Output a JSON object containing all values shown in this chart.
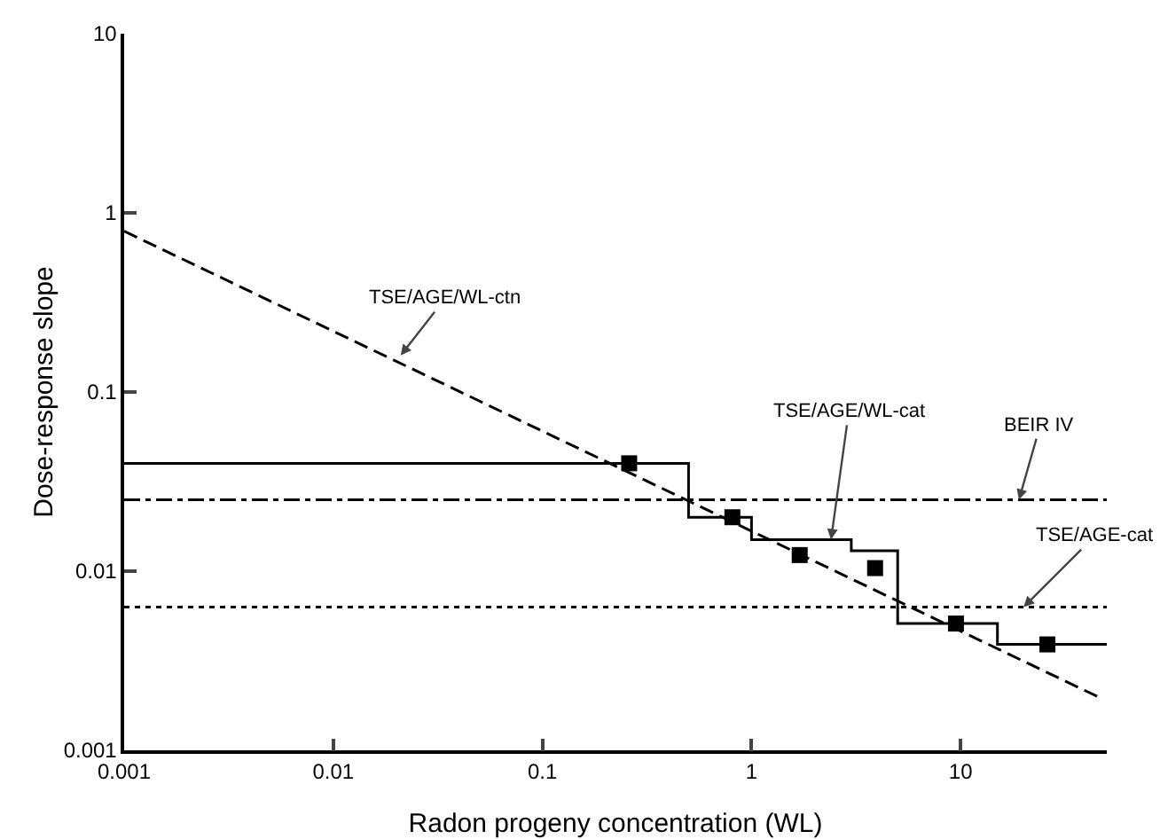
{
  "chart_data": {
    "type": "line",
    "xlabel": "Radon progeny concentration (WL)",
    "ylabel": "Dose-response slope",
    "log": "xy",
    "grid": false,
    "xlim": [
      0.001,
      50
    ],
    "xticks": [
      0.001,
      0.01,
      0.1,
      1,
      10
    ],
    "ylim": [
      0.001,
      10
    ],
    "yticks": [
      0.001,
      0.01,
      0.1,
      1,
      10
    ],
    "series": [
      {
        "color": "#000000",
        "line_style": "dashed",
        "marker": "none",
        "x": [
          0.001,
          45
        ],
        "values": [
          0.79,
          0.002
        ]
      },
      {
        "type": "step",
        "color": "#000000",
        "line_style": "solid",
        "marker": "none",
        "x": [
          0.001,
          0.5,
          1,
          3,
          5,
          15,
          50
        ],
        "values": [
          0.04,
          0.02,
          0.015,
          0.013,
          0.0051,
          0.0039,
          0.0039
        ]
      },
      {
        "type": "scatter",
        "color": "#000000",
        "marker": "square",
        "x": [
          0.26,
          0.81,
          1.7,
          3.9,
          9.5,
          26
        ],
        "values": [
          0.04,
          0.02,
          0.0123,
          0.0104,
          0.0051,
          0.0039
        ]
      },
      {
        "color": "#000000",
        "line_style": "dashdot",
        "marker": "none",
        "x": [
          0.001,
          50
        ],
        "values": [
          0.025,
          0.025
        ]
      },
      {
        "color": "#000000",
        "line_style": "dotted",
        "marker": "none",
        "x": [
          0.001,
          50
        ],
        "values": [
          0.0063,
          0.0063
        ]
      }
    ],
    "annotations": [
      {
        "text": "TSE/AGE/WL-ctn",
        "x": 0.021,
        "y": 0.16
      },
      {
        "text": "TSE/AGE/WL-cat",
        "x": 2.4,
        "y": 0.015
      },
      {
        "text": "BEIR IV",
        "x": 19,
        "y": 0.025
      },
      {
        "text": "TSE/AGE-cat",
        "x": 20,
        "y": 0.0063
      }
    ]
  }
}
